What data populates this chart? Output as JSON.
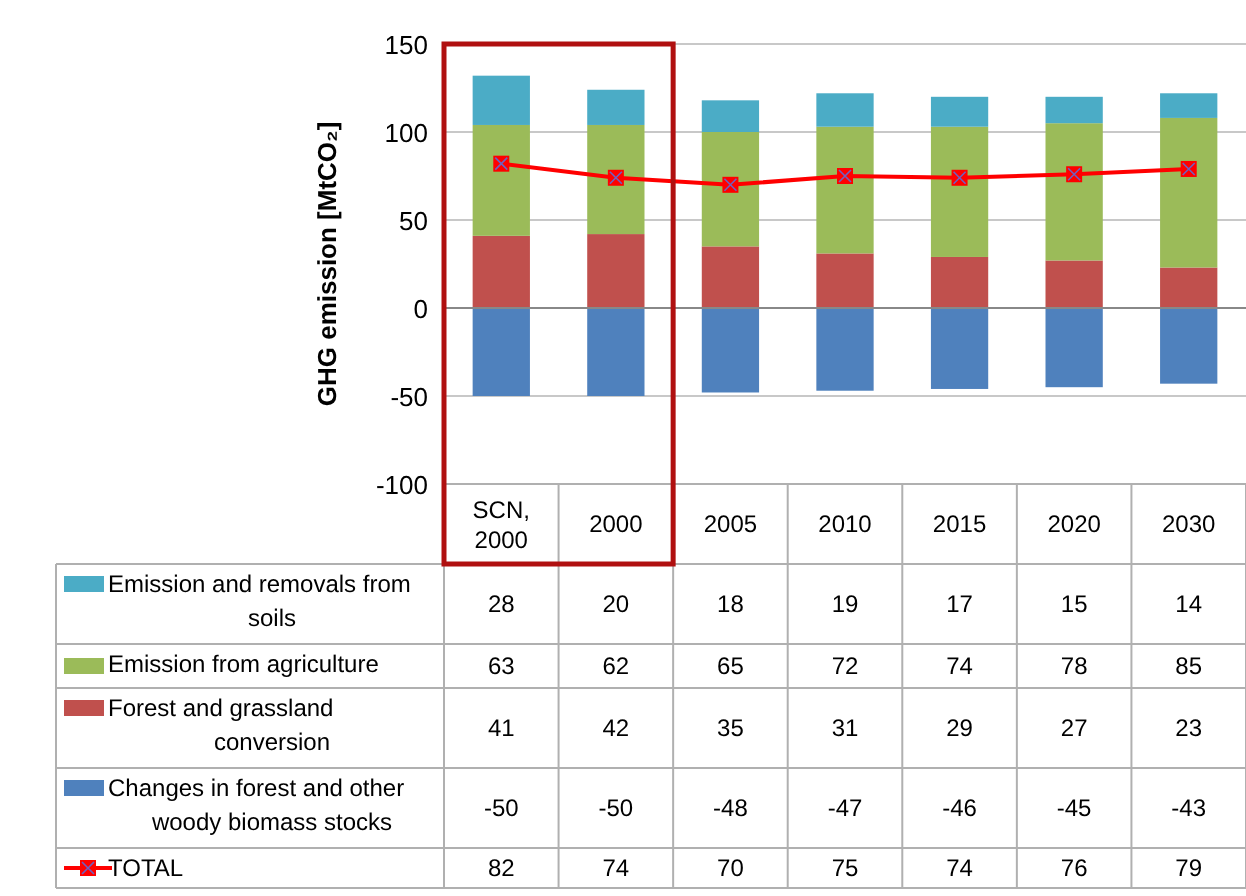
{
  "chart_data": {
    "type": "bar",
    "stacked": true,
    "ylabel": "GHG emission [MtCO₂]",
    "categories": [
      "SCN, 2000",
      "2000",
      "2005",
      "2010",
      "2015",
      "2020",
      "2030"
    ],
    "series": [
      {
        "name": "Changes in forest and other woody biomass stocks",
        "color": "#4f81bd",
        "values": [
          -50,
          -50,
          -48,
          -47,
          -46,
          -45,
          -43
        ]
      },
      {
        "name": "Forest and grassland conversion",
        "color": "#c0504d",
        "values": [
          41,
          42,
          35,
          31,
          29,
          27,
          23
        ]
      },
      {
        "name": "Emission from agriculture",
        "color": "#9bbb59",
        "values": [
          63,
          62,
          65,
          72,
          74,
          78,
          85
        ]
      },
      {
        "name": "Emission and removals from soils",
        "color": "#4bacc6",
        "values": [
          28,
          20,
          18,
          19,
          17,
          15,
          14
        ]
      },
      {
        "name": "TOTAL",
        "type": "line",
        "color": "#ff0000",
        "marker": "square",
        "values": [
          82,
          74,
          70,
          75,
          74,
          76,
          79
        ]
      }
    ],
    "ylim": [
      -100,
      150
    ],
    "yticks": [
      -100,
      -50,
      0,
      50,
      100,
      150
    ],
    "grid": "y",
    "legend": "bottom",
    "data_labels": true
  }
}
